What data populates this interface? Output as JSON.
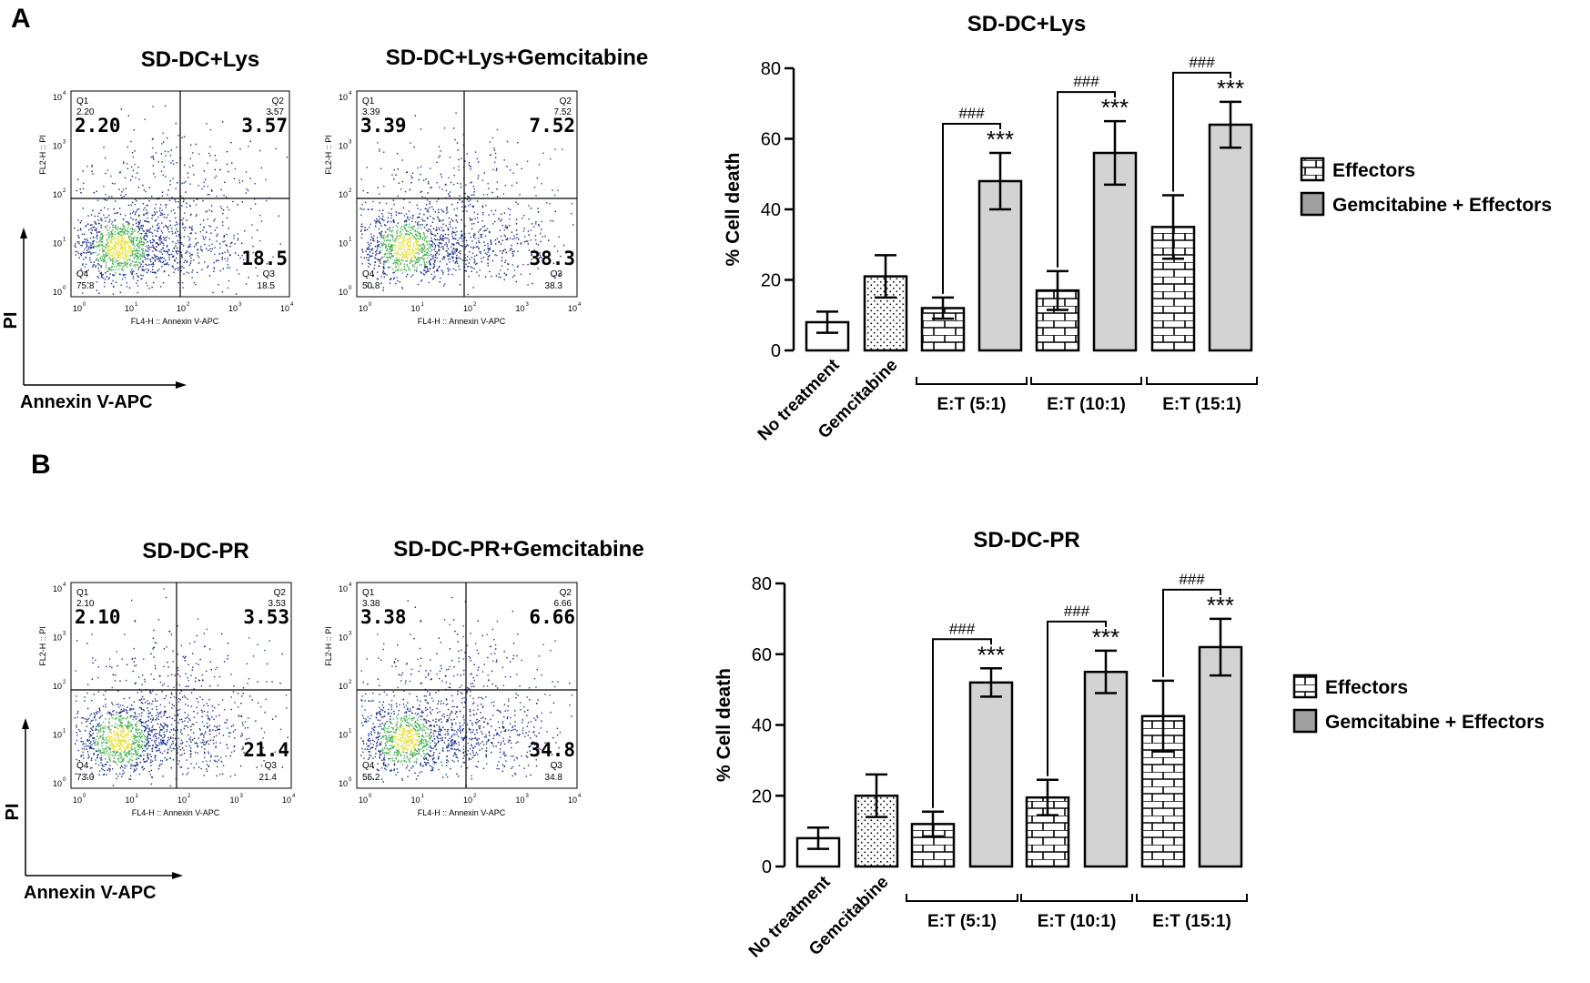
{
  "panels": [
    {
      "letter": "A",
      "plot_titles": [
        "SD-DC+Lys",
        "SD-DC+Lys+Gemcitabine"
      ],
      "y_axis_label": "PI",
      "x_axis_label": "Annexin V-APC",
      "flow_plots": [
        {
          "fl2_label": "FL2-H :: PI",
          "fl4_label": "FL4-H :: Annexin V-APC",
          "quadrants": {
            "q1": {
              "name": "Q1",
              "small": "2.20",
              "big": "2.20"
            },
            "q2": {
              "name": "Q2",
              "small": "3.57",
              "big": "3.57"
            },
            "q3": {
              "name": "Q3",
              "small": "18.5",
              "big": "18.5"
            },
            "q4": {
              "name": "Q4",
              "small": "75.8"
            }
          }
        },
        {
          "fl2_label": "FL2-H :: PI",
          "fl4_label": "FL4-H :: Annexin V-APC",
          "quadrants": {
            "q1": {
              "name": "Q1",
              "small": "3.39",
              "big": "3.39"
            },
            "q2": {
              "name": "Q2",
              "small": "7.52",
              "big": "7.52"
            },
            "q3": {
              "name": "Q3",
              "small": "38.3",
              "big": "38.3"
            },
            "q4": {
              "name": "Q4",
              "small": "50.8"
            }
          }
        }
      ]
    },
    {
      "letter": "B",
      "plot_titles": [
        "SD-DC-PR",
        "SD-DC-PR+Gemcitabine"
      ],
      "y_axis_label": "PI",
      "x_axis_label": "Annexin V-APC",
      "flow_plots": [
        {
          "fl2_label": "FL2-H :: PI",
          "fl4_label": "FL4-H :: Annexin V-APC",
          "quadrants": {
            "q1": {
              "name": "Q1",
              "small": "2.10",
              "big": "2.10"
            },
            "q2": {
              "name": "Q2",
              "small": "3.53",
              "big": "3.53"
            },
            "q3": {
              "name": "Q3",
              "small": "21.4",
              "big": "21.4"
            },
            "q4": {
              "name": "Q4",
              "small": "73.0"
            }
          }
        },
        {
          "fl2_label": "FL2-H :: PI",
          "fl4_label": "FL4-H :: Annexin V-APC",
          "quadrants": {
            "q1": {
              "name": "Q1",
              "small": "3.38",
              "big": "3.38"
            },
            "q2": {
              "name": "Q2",
              "small": "6.66",
              "big": "6.66"
            },
            "q3": {
              "name": "Q3",
              "small": "34.8",
              "big": "34.8"
            },
            "q4": {
              "name": "Q4",
              "small": "55.2"
            }
          }
        }
      ]
    }
  ],
  "flow_axis_ticks": [
    "10",
    "10",
    "10",
    "10",
    "10"
  ],
  "flow_axis_exponents": [
    "0",
    "1",
    "2",
    "3",
    "4"
  ],
  "chart_data": [
    {
      "type": "bar",
      "title": "SD-DC+Lys",
      "ylabel": "% Cell death",
      "ylim": [
        0,
        80
      ],
      "yticks": [
        "0",
        "20",
        "40",
        "60",
        "80"
      ],
      "categories": [
        "No treatment",
        "Gemcitabine"
      ],
      "groups": [
        "E:T (5:1)",
        "E:T (10:1)",
        "E:T (15:1)"
      ],
      "bars": [
        {
          "label": "No treatment",
          "value": 8,
          "error": 3,
          "pattern": "open"
        },
        {
          "label": "Gemcitabine",
          "value": 21,
          "error": 6,
          "pattern": "dots"
        },
        {
          "group": "E:T (5:1)",
          "series": "Effectors",
          "value": 12,
          "error": 3,
          "pattern": "brick"
        },
        {
          "group": "E:T (5:1)",
          "series": "Gemcitabine + Effectors",
          "value": 48,
          "error": 8,
          "pattern": "gray"
        },
        {
          "group": "E:T (10:1)",
          "series": "Effectors",
          "value": 17,
          "error": 5.5,
          "pattern": "brick"
        },
        {
          "group": "E:T (10:1)",
          "series": "Gemcitabine + Effectors",
          "value": 56,
          "error": 9,
          "pattern": "gray"
        },
        {
          "group": "E:T (15:1)",
          "series": "Effectors",
          "value": 35,
          "error": 9,
          "pattern": "brick"
        },
        {
          "group": "E:T (15:1)",
          "series": "Gemcitabine + Effectors",
          "value": 64,
          "error": 6.5,
          "pattern": "gray"
        }
      ],
      "significance_star": "***",
      "significance_hash": "###",
      "legend": {
        "placement": "right",
        "items": [
          {
            "label": "Effectors",
            "pattern": "brick"
          },
          {
            "label": "Gemcitabine + Effectors",
            "pattern": "gray"
          }
        ]
      }
    },
    {
      "type": "bar",
      "title": "SD-DC-PR",
      "ylabel": "% Cell death",
      "ylim": [
        0,
        80
      ],
      "yticks": [
        "0",
        "20",
        "40",
        "60",
        "80"
      ],
      "categories": [
        "No treatment",
        "Gemcitabine"
      ],
      "groups": [
        "E:T (5:1)",
        "E:T (10:1)",
        "E:T (15:1)"
      ],
      "bars": [
        {
          "label": "No treatment",
          "value": 8,
          "error": 3,
          "pattern": "open"
        },
        {
          "label": "Gemcitabine",
          "value": 20,
          "error": 6,
          "pattern": "dots"
        },
        {
          "group": "E:T (5:1)",
          "series": "Effectors",
          "value": 12,
          "error": 3.5,
          "pattern": "brick"
        },
        {
          "group": "E:T (5:1)",
          "series": "Gemcitabine + Effectors",
          "value": 52,
          "error": 4,
          "pattern": "gray"
        },
        {
          "group": "E:T (10:1)",
          "series": "Effectors",
          "value": 19.5,
          "error": 5,
          "pattern": "brick"
        },
        {
          "group": "E:T (10:1)",
          "series": "Gemcitabine + Effectors",
          "value": 55,
          "error": 6,
          "pattern": "gray"
        },
        {
          "group": "E:T (15:1)",
          "series": "Effectors",
          "value": 42.5,
          "error": 10,
          "pattern": "brick"
        },
        {
          "group": "E:T (15:1)",
          "series": "Gemcitabine + Effectors",
          "value": 62,
          "error": 8,
          "pattern": "gray"
        }
      ],
      "significance_star": "***",
      "significance_hash": "###",
      "legend": {
        "placement": "right",
        "items": [
          {
            "label": "Effectors",
            "pattern": "brick"
          },
          {
            "label": "Gemcitabine + Effectors",
            "pattern": "gray"
          }
        ]
      }
    }
  ],
  "colors": {
    "bar_gray": "#d3d3d3",
    "legend_gray": "#a0a0a0",
    "dot_blue": "#1f3ea8",
    "dot_navy": "#16206b",
    "dot_green": "#3fae4a",
    "dot_yellow": "#e8e03a"
  }
}
